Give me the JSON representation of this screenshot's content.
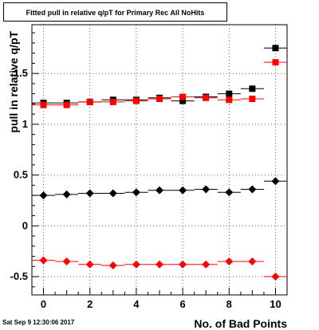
{
  "title": "Fitted pull in relative q/pT for Primary Rec All NoHits",
  "timestamp": "Sat Sep  9 12:30:06 2017",
  "chart_data": {
    "type": "scatter",
    "title": "Fitted pull in relative q/pT for Primary Rec All NoHits",
    "xlabel": "No. of Bad Points",
    "ylabel": "pull in relative q/pT",
    "xlim": [
      -0.5,
      10.5
    ],
    "ylim": [
      -0.68,
      1.98
    ],
    "x_ticks": [
      0,
      2,
      4,
      6,
      8,
      10
    ],
    "x_tick_labels": [
      "0",
      "2",
      "4",
      "6",
      "8",
      "10"
    ],
    "y_ticks": [
      -0.5,
      0,
      0.5,
      1,
      1.5
    ],
    "y_tick_labels": [
      "-0.5",
      "0",
      "0.5",
      "1",
      "1.5"
    ],
    "grid": true,
    "x": [
      0,
      1,
      2,
      3,
      4,
      5,
      6,
      7,
      8,
      9,
      10
    ],
    "series": [
      {
        "marker": "square",
        "color": "#000000",
        "values": [
          1.21,
          1.21,
          1.22,
          1.24,
          1.24,
          1.26,
          1.23,
          1.27,
          1.3,
          1.35,
          1.75
        ]
      },
      {
        "marker": "square",
        "color": "#ff0000",
        "values": [
          1.19,
          1.19,
          1.22,
          1.22,
          1.23,
          1.25,
          1.27,
          1.26,
          1.24,
          1.25,
          1.61
        ]
      },
      {
        "marker": "diamond",
        "color": "#000000",
        "values": [
          0.3,
          0.31,
          0.32,
          0.32,
          0.33,
          0.35,
          0.35,
          0.36,
          0.33,
          0.36,
          0.44
        ]
      },
      {
        "marker": "diamond",
        "color": "#ff0000",
        "values": [
          -0.34,
          -0.35,
          -0.38,
          -0.39,
          -0.38,
          -0.38,
          -0.38,
          -0.38,
          -0.35,
          -0.35,
          -0.5
        ]
      }
    ]
  }
}
